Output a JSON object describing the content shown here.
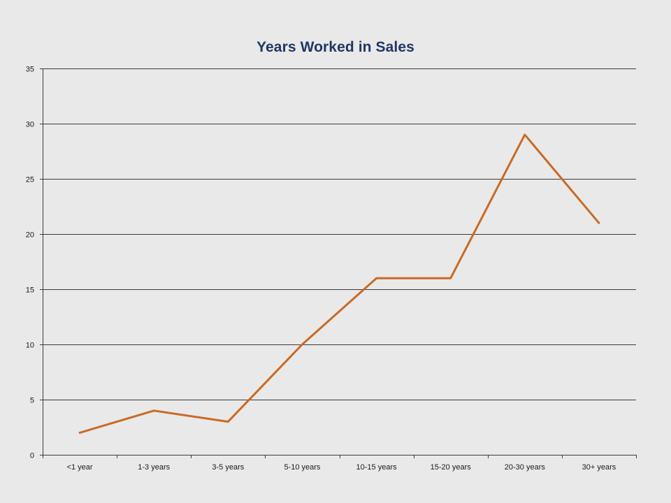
{
  "chart_data": {
    "type": "line",
    "title": "Years Worked in Sales",
    "xlabel": "",
    "ylabel": "",
    "categories": [
      "<1 year",
      "1-3 years",
      "3-5 years",
      "5-10 years",
      "10-15 years",
      "15-20 years",
      "20-30 years",
      "30+ years"
    ],
    "series": [
      {
        "values": [
          2,
          4,
          3,
          10,
          16,
          16,
          29,
          21
        ],
        "color": "#c96a25"
      }
    ],
    "ylim": [
      0,
      35
    ],
    "yticks": [
      "0",
      "5",
      "10",
      "15",
      "20",
      "25",
      "30",
      "35"
    ],
    "grid": true,
    "legend": "none",
    "gridline_color": "#3a3a3a",
    "background_color": "#e9e9e9",
    "title_color": "#1f3864"
  }
}
